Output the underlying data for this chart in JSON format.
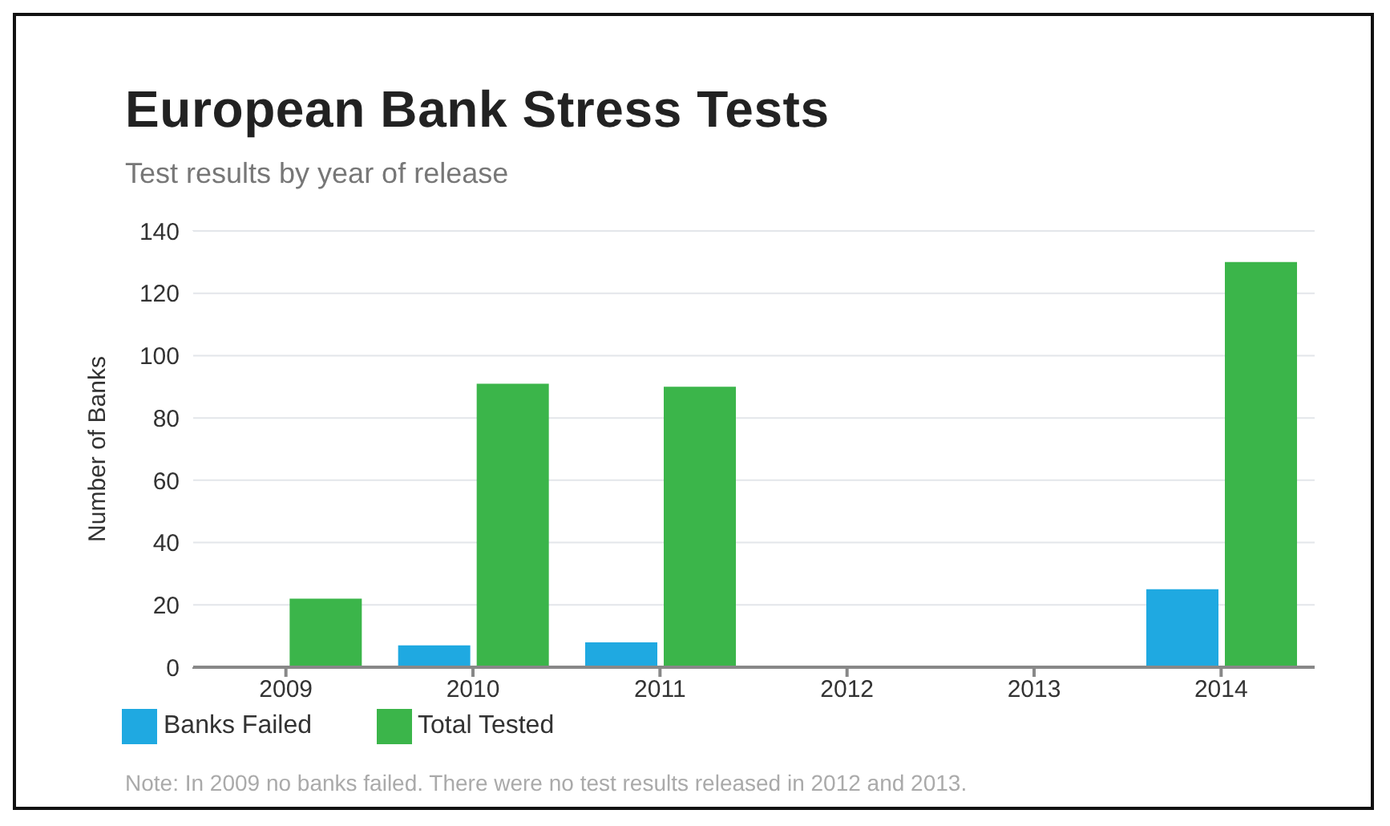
{
  "chart_data": {
    "type": "bar",
    "title": "European Bank Stress Tests",
    "subtitle": "Test results by year of release",
    "ylabel": "Number of Banks",
    "categories": [
      "2009",
      "2010",
      "2011",
      "2012",
      "2013",
      "2014"
    ],
    "series": [
      {
        "name": "Banks Failed",
        "color": "#1fa9e1",
        "values": [
          0,
          7,
          8,
          null,
          null,
          25
        ]
      },
      {
        "name": "Total Tested",
        "color": "#3bb54a",
        "values": [
          22,
          91,
          90,
          null,
          null,
          130
        ]
      }
    ],
    "ylim": [
      0,
      140
    ],
    "yticks": [
      0,
      20,
      40,
      60,
      80,
      100,
      120,
      140
    ],
    "grid": "y",
    "legend": "bottom left",
    "annotations": [
      "Note: In 2009 no banks failed. There were no test results released in 2012 and 2013."
    ]
  }
}
